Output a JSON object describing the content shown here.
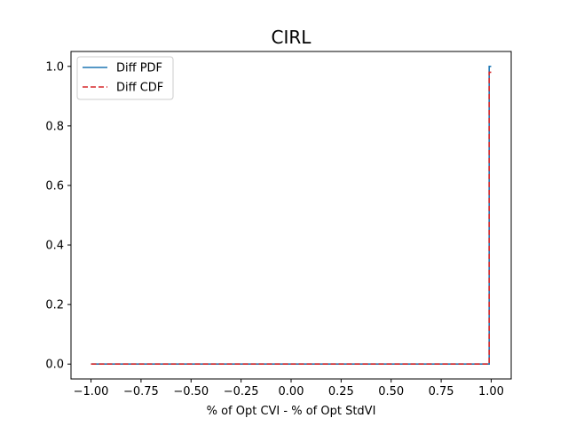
{
  "chart_data": {
    "type": "line",
    "title": "CIRL",
    "xlabel": "% of Opt CVI - % of Opt StdVI",
    "ylabel": "",
    "xlim": [
      -1.1,
      1.1
    ],
    "ylim": [
      -0.05,
      1.05
    ],
    "xticks": [
      "−1.00",
      "−0.75",
      "−0.50",
      "−0.25",
      "0.00",
      "0.25",
      "0.50",
      "0.75",
      "1.00"
    ],
    "xtick_values": [
      -1.0,
      -0.75,
      -0.5,
      -0.25,
      0.0,
      0.25,
      0.5,
      0.75,
      1.0
    ],
    "yticks": [
      "0.0",
      "0.2",
      "0.4",
      "0.6",
      "0.8",
      "1.0"
    ],
    "ytick_values": [
      0.0,
      0.2,
      0.4,
      0.6,
      0.8,
      1.0
    ],
    "grid": false,
    "legend_position": "upper-left",
    "series": [
      {
        "name": "Diff PDF",
        "color": "#1f77b4",
        "style": "solid",
        "x": [
          -1.0,
          0.99,
          0.99,
          1.0
        ],
        "y": [
          0.0,
          0.0,
          1.0,
          1.0
        ]
      },
      {
        "name": "Diff CDF",
        "color": "#d62728",
        "style": "dashed",
        "x": [
          -1.0,
          0.99,
          0.99,
          1.0
        ],
        "y": [
          0.0,
          0.0,
          0.98,
          0.98
        ]
      }
    ]
  }
}
